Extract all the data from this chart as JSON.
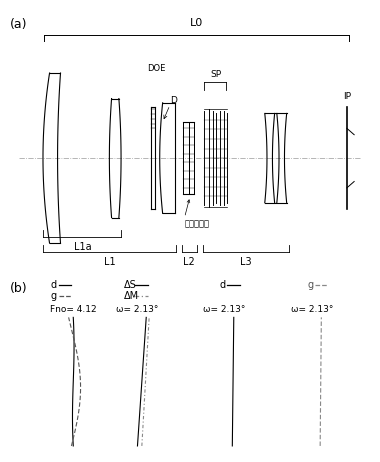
{
  "title_a": "(a)",
  "title_b": "(b)",
  "bg_color": "#ffffff",
  "text_color": "#000000",
  "label_L0": "L0",
  "label_L1a": "L1a",
  "label_L1": "L1",
  "label_L2": "L2",
  "label_L3": "L3",
  "label_DOE": "DOE",
  "label_D": "D",
  "label_SP": "SP",
  "label_IP": "IP",
  "label_focus": "フォーカス",
  "legend_d": "d",
  "legend_g": "g",
  "legend_dS": "ΔS",
  "legend_dM": "ΔM",
  "fno": "Fno= 4.12",
  "omega1": "ω= 2.13°",
  "omega2": "ω= 2.13°",
  "omega3": "ω= 2.13°"
}
